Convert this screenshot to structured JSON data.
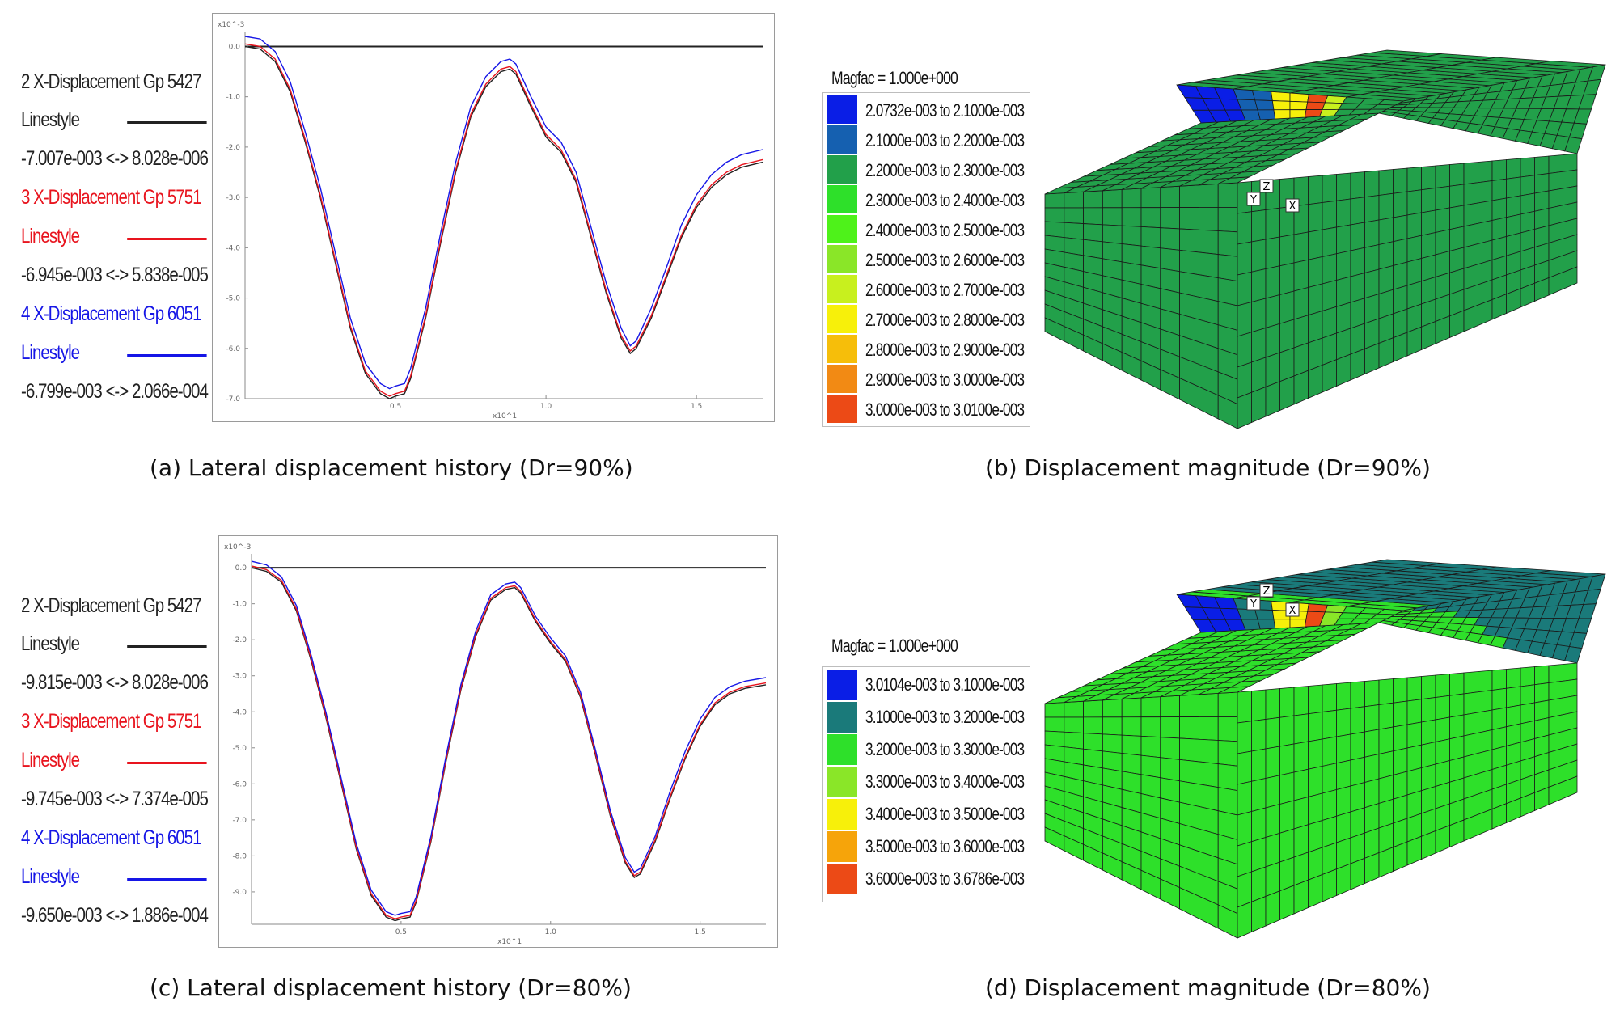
{
  "panels": [
    {
      "id": "a",
      "caption": "(a) Lateral displacement history (Dr=90%)",
      "legend": [
        {
          "label": "2 X-Displacement Gp 5427",
          "linestyle": "Linestyle",
          "range": "-7.007e-003 <-> 8.028e-006",
          "color": "#222222"
        },
        {
          "label": "3 X-Displacement Gp 5751",
          "linestyle": "Linestyle",
          "range": "-6.945e-003 <-> 5.838e-005",
          "color": "#e8141e"
        },
        {
          "label": "4 X-Displacement Gp 6051",
          "linestyle": "Linestyle",
          "range": "-6.799e-003 <-> 2.066e-004",
          "color": "#1616e6"
        }
      ]
    },
    {
      "id": "b",
      "caption": "(b) Displacement magnitude (Dr=90%)",
      "magfac": "Magfac = 1.000e+000",
      "colorbar": [
        {
          "label": "2.0732e-003 to 2.1000e-003",
          "color": "#0a1ee6"
        },
        {
          "label": "2.1000e-003 to 2.2000e-003",
          "color": "#1560b0"
        },
        {
          "label": "2.2000e-003 to 2.3000e-003",
          "color": "#22a04a"
        },
        {
          "label": "2.3000e-003 to 2.4000e-003",
          "color": "#2ee02a"
        },
        {
          "label": "2.4000e-003 to 2.5000e-003",
          "color": "#4ef21a"
        },
        {
          "label": "2.5000e-003 to 2.6000e-003",
          "color": "#8ae628"
        },
        {
          "label": "2.6000e-003 to 2.7000e-003",
          "color": "#c8f01e"
        },
        {
          "label": "2.7000e-003 to 2.8000e-003",
          "color": "#f7f00a"
        },
        {
          "label": "2.8000e-003 to 2.9000e-003",
          "color": "#f6be0a"
        },
        {
          "label": "2.9000e-003 to 3.0000e-003",
          "color": "#f28a14"
        },
        {
          "label": "3.0000e-003 to 3.0100e-003",
          "color": "#ec4a16"
        }
      ],
      "axes": {
        "x": "X",
        "y": "Y",
        "z": "Z"
      }
    },
    {
      "id": "c",
      "caption": "(c) Lateral displacement history (Dr=80%)",
      "legend": [
        {
          "label": "2 X-Displacement Gp 5427",
          "linestyle": "Linestyle",
          "range": "-9.815e-003 <-> 8.028e-006",
          "color": "#222222"
        },
        {
          "label": "3 X-Displacement Gp 5751",
          "linestyle": "Linestyle",
          "range": "-9.745e-003 <-> 7.374e-005",
          "color": "#e8141e"
        },
        {
          "label": "4 X-Displacement Gp 6051",
          "linestyle": "Linestyle",
          "range": "-9.650e-003 <-> 1.886e-004",
          "color": "#1616e6"
        }
      ]
    },
    {
      "id": "d",
      "caption": "(d) Displacement magnitude (Dr=80%)",
      "magfac": "Magfac = 1.000e+000",
      "colorbar": [
        {
          "label": "3.0104e-003 to 3.1000e-003",
          "color": "#0a1ee6"
        },
        {
          "label": "3.1000e-003 to 3.2000e-003",
          "color": "#1a7a7a"
        },
        {
          "label": "3.2000e-003 to 3.3000e-003",
          "color": "#2ee02a"
        },
        {
          "label": "3.3000e-003 to 3.4000e-003",
          "color": "#8ae628"
        },
        {
          "label": "3.4000e-003 to 3.5000e-003",
          "color": "#f7f00a"
        },
        {
          "label": "3.5000e-003 to 3.6000e-003",
          "color": "#f6a40a"
        },
        {
          "label": "3.6000e-003 to 3.6786e-003",
          "color": "#ec4a16"
        }
      ],
      "axes": {
        "x": "X",
        "y": "Y",
        "z": "Z"
      }
    }
  ],
  "chart_data": [
    {
      "type": "line",
      "panel": "a",
      "y_multiplier": "x10^-3",
      "x_multiplier": "x10^1",
      "xlim": [
        0,
        1.72
      ],
      "ylim": [
        -7.0,
        0.2
      ],
      "xticks": [
        "0.5",
        "1.0",
        "1.5"
      ],
      "xtick_values": [
        0.5,
        1.0,
        1.5
      ],
      "yticks": [
        "0.0",
        "-1.0",
        "-2.0",
        "-3.0",
        "-4.0",
        "-5.0",
        "-6.0",
        "-7.0"
      ],
      "ytick_values": [
        0,
        -1,
        -2,
        -3,
        -4,
        -5,
        -6,
        -7
      ],
      "series": [
        {
          "name": "2 X-Displacement Gp 5427",
          "color": "#222222",
          "x": [
            0,
            0.05,
            0.1,
            0.15,
            0.2,
            0.25,
            0.3,
            0.35,
            0.4,
            0.45,
            0.48,
            0.5,
            0.53,
            0.55,
            0.6,
            0.65,
            0.7,
            0.75,
            0.8,
            0.85,
            0.88,
            0.9,
            0.95,
            1.0,
            1.05,
            1.1,
            1.15,
            1.2,
            1.25,
            1.28,
            1.3,
            1.35,
            1.4,
            1.45,
            1.5,
            1.55,
            1.6,
            1.65,
            1.72
          ],
          "y": [
            0.0,
            -0.05,
            -0.3,
            -0.9,
            -1.9,
            -3.0,
            -4.3,
            -5.6,
            -6.5,
            -6.9,
            -7.0,
            -6.95,
            -6.9,
            -6.6,
            -5.4,
            -3.9,
            -2.5,
            -1.4,
            -0.8,
            -0.5,
            -0.45,
            -0.55,
            -1.2,
            -1.8,
            -2.1,
            -2.7,
            -3.8,
            -4.9,
            -5.8,
            -6.1,
            -6.0,
            -5.4,
            -4.6,
            -3.8,
            -3.2,
            -2.8,
            -2.55,
            -2.4,
            -2.3
          ]
        },
        {
          "name": "3 X-Displacement Gp 5751",
          "color": "#e8141e",
          "x": [
            0,
            0.05,
            0.1,
            0.15,
            0.2,
            0.25,
            0.3,
            0.35,
            0.4,
            0.45,
            0.48,
            0.5,
            0.53,
            0.55,
            0.6,
            0.65,
            0.7,
            0.75,
            0.8,
            0.85,
            0.88,
            0.9,
            0.95,
            1.0,
            1.05,
            1.1,
            1.15,
            1.2,
            1.25,
            1.28,
            1.3,
            1.35,
            1.4,
            1.45,
            1.5,
            1.55,
            1.6,
            1.65,
            1.72
          ],
          "y": [
            0.05,
            0.0,
            -0.25,
            -0.85,
            -1.85,
            -2.95,
            -4.25,
            -5.55,
            -6.45,
            -6.85,
            -6.95,
            -6.9,
            -6.85,
            -6.55,
            -5.35,
            -3.85,
            -2.45,
            -1.35,
            -0.75,
            -0.45,
            -0.4,
            -0.5,
            -1.15,
            -1.75,
            -2.05,
            -2.65,
            -3.75,
            -4.85,
            -5.75,
            -6.05,
            -5.95,
            -5.35,
            -4.55,
            -3.75,
            -3.15,
            -2.75,
            -2.5,
            -2.35,
            -2.25
          ]
        },
        {
          "name": "4 X-Displacement Gp 6051",
          "color": "#1616e6",
          "x": [
            0,
            0.05,
            0.1,
            0.15,
            0.2,
            0.25,
            0.3,
            0.35,
            0.4,
            0.45,
            0.48,
            0.5,
            0.53,
            0.55,
            0.6,
            0.65,
            0.7,
            0.75,
            0.8,
            0.85,
            0.88,
            0.9,
            0.95,
            1.0,
            1.05,
            1.1,
            1.15,
            1.2,
            1.25,
            1.28,
            1.3,
            1.35,
            1.4,
            1.45,
            1.5,
            1.55,
            1.6,
            1.65,
            1.72
          ],
          "y": [
            0.2,
            0.15,
            -0.1,
            -0.7,
            -1.7,
            -2.8,
            -4.1,
            -5.4,
            -6.3,
            -6.7,
            -6.8,
            -6.75,
            -6.7,
            -6.4,
            -5.2,
            -3.7,
            -2.3,
            -1.2,
            -0.6,
            -0.3,
            -0.25,
            -0.35,
            -1.0,
            -1.6,
            -1.9,
            -2.5,
            -3.6,
            -4.7,
            -5.6,
            -5.95,
            -5.85,
            -5.2,
            -4.4,
            -3.55,
            -2.95,
            -2.55,
            -2.3,
            -2.15,
            -2.05
          ]
        }
      ]
    },
    {
      "type": "line",
      "panel": "c",
      "y_multiplier": "x10^-3",
      "x_multiplier": "x10^1",
      "xlim": [
        0,
        1.72
      ],
      "ylim": [
        -9.9,
        0.25
      ],
      "xticks": [
        "0.5",
        "1.0",
        "1.5"
      ],
      "xtick_values": [
        0.5,
        1.0,
        1.5
      ],
      "yticks": [
        "0.0",
        "-1.0",
        "-2.0",
        "-3.0",
        "-4.0",
        "-5.0",
        "-6.0",
        "-7.0",
        "-8.0",
        "-9.0"
      ],
      "ytick_values": [
        0,
        -1,
        -2,
        -3,
        -4,
        -5,
        -6,
        -7,
        -8,
        -9
      ],
      "series": [
        {
          "name": "2 X-Displacement Gp 5427",
          "color": "#222222",
          "x": [
            0,
            0.05,
            0.1,
            0.15,
            0.2,
            0.25,
            0.3,
            0.35,
            0.4,
            0.45,
            0.48,
            0.5,
            0.53,
            0.55,
            0.6,
            0.65,
            0.7,
            0.75,
            0.8,
            0.85,
            0.88,
            0.9,
            0.95,
            1.0,
            1.05,
            1.1,
            1.15,
            1.2,
            1.25,
            1.28,
            1.3,
            1.35,
            1.4,
            1.45,
            1.5,
            1.55,
            1.6,
            1.65,
            1.72
          ],
          "y": [
            0.0,
            -0.1,
            -0.4,
            -1.2,
            -2.6,
            -4.2,
            -6.0,
            -7.8,
            -9.1,
            -9.7,
            -9.8,
            -9.75,
            -9.7,
            -9.3,
            -7.6,
            -5.4,
            -3.4,
            -1.9,
            -0.9,
            -0.6,
            -0.55,
            -0.7,
            -1.5,
            -2.1,
            -2.6,
            -3.6,
            -5.2,
            -6.9,
            -8.2,
            -8.6,
            -8.5,
            -7.6,
            -6.4,
            -5.3,
            -4.4,
            -3.8,
            -3.5,
            -3.35,
            -3.25
          ]
        },
        {
          "name": "3 X-Displacement Gp 5751",
          "color": "#e8141e",
          "x": [
            0,
            0.05,
            0.1,
            0.15,
            0.2,
            0.25,
            0.3,
            0.35,
            0.4,
            0.45,
            0.48,
            0.5,
            0.53,
            0.55,
            0.6,
            0.65,
            0.7,
            0.75,
            0.8,
            0.85,
            0.88,
            0.9,
            0.95,
            1.0,
            1.05,
            1.1,
            1.15,
            1.2,
            1.25,
            1.28,
            1.3,
            1.35,
            1.4,
            1.45,
            1.5,
            1.55,
            1.6,
            1.65,
            1.72
          ],
          "y": [
            0.05,
            -0.05,
            -0.35,
            -1.15,
            -2.55,
            -4.15,
            -5.95,
            -7.75,
            -9.05,
            -9.65,
            -9.75,
            -9.7,
            -9.65,
            -9.25,
            -7.55,
            -5.35,
            -3.35,
            -1.85,
            -0.85,
            -0.55,
            -0.5,
            -0.65,
            -1.45,
            -2.05,
            -2.55,
            -3.55,
            -5.15,
            -6.85,
            -8.15,
            -8.55,
            -8.45,
            -7.55,
            -6.35,
            -5.25,
            -4.35,
            -3.75,
            -3.45,
            -3.3,
            -3.2
          ]
        },
        {
          "name": "4 X-Displacement Gp 6051",
          "color": "#1616e6",
          "x": [
            0,
            0.05,
            0.1,
            0.15,
            0.2,
            0.25,
            0.3,
            0.35,
            0.4,
            0.45,
            0.48,
            0.5,
            0.53,
            0.55,
            0.6,
            0.65,
            0.7,
            0.75,
            0.8,
            0.85,
            0.88,
            0.9,
            0.95,
            1.0,
            1.05,
            1.1,
            1.15,
            1.2,
            1.25,
            1.28,
            1.3,
            1.35,
            1.4,
            1.45,
            1.5,
            1.55,
            1.6,
            1.65,
            1.72
          ],
          "y": [
            0.18,
            0.08,
            -0.25,
            -1.05,
            -2.45,
            -4.05,
            -5.85,
            -7.65,
            -8.95,
            -9.55,
            -9.65,
            -9.6,
            -9.55,
            -9.15,
            -7.45,
            -5.25,
            -3.25,
            -1.75,
            -0.75,
            -0.45,
            -0.4,
            -0.55,
            -1.35,
            -1.95,
            -2.45,
            -3.45,
            -5.05,
            -6.75,
            -8.05,
            -8.45,
            -8.35,
            -7.45,
            -6.2,
            -5.1,
            -4.2,
            -3.6,
            -3.3,
            -3.15,
            -3.05
          ]
        }
      ]
    }
  ]
}
